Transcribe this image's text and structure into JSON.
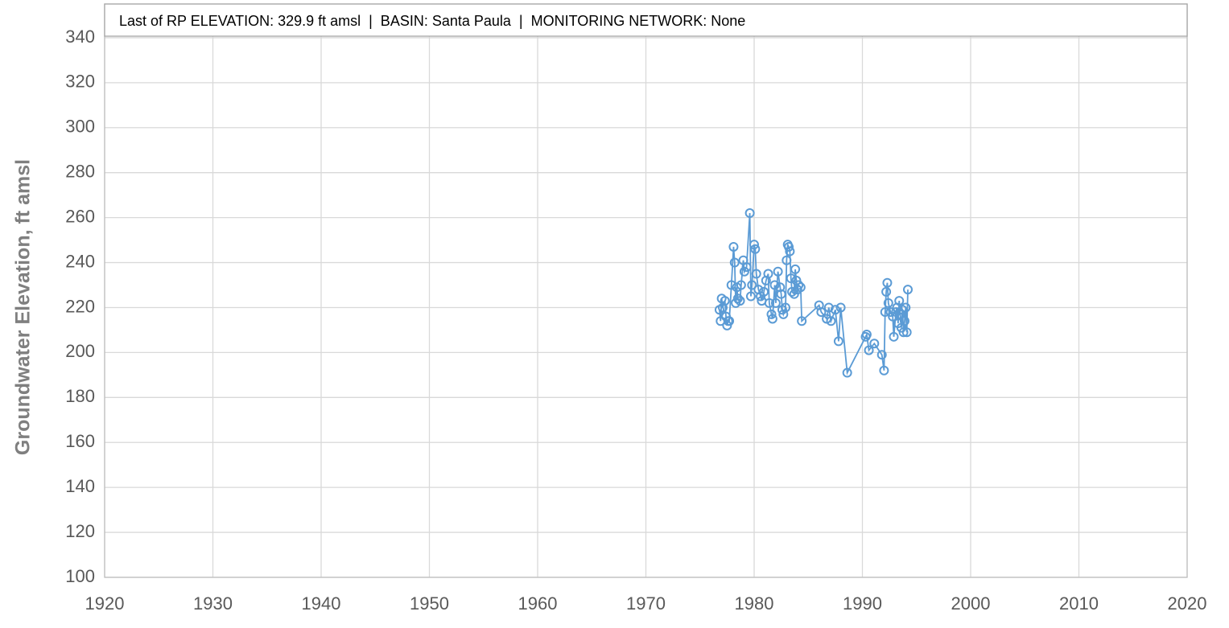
{
  "chart_data": {
    "type": "line",
    "annotation": "Last of RP ELEVATION: 329.9 ft amsl  |  BASIN: Santa Paula  |  MONITORING NETWORK: None",
    "y_label": "Groundwater Elevation, ft amsl",
    "color": "#5b9bd5",
    "grid": true,
    "xlim": [
      1920,
      2020
    ],
    "xticks": [
      1920,
      1930,
      1940,
      1950,
      1960,
      1970,
      1980,
      1990,
      2000,
      2010,
      2020
    ],
    "ylim": [
      100,
      355
    ],
    "yticks": [
      100,
      120,
      140,
      160,
      180,
      200,
      220,
      240,
      260,
      280,
      300,
      320,
      340
    ],
    "x": [
      1976.8,
      1976.9,
      1977.0,
      1977.1,
      1977.3,
      1977.4,
      1977.5,
      1977.6,
      1977.7,
      1977.9,
      1978.1,
      1978.2,
      1978.3,
      1978.4,
      1978.5,
      1978.7,
      1978.8,
      1979.0,
      1979.1,
      1979.3,
      1979.6,
      1979.7,
      1979.8,
      1980.0,
      1980.1,
      1980.2,
      1980.4,
      1980.6,
      1980.7,
      1980.9,
      1981.1,
      1981.3,
      1981.4,
      1981.6,
      1981.7,
      1981.9,
      1982.0,
      1982.2,
      1982.4,
      1982.5,
      1982.6,
      1982.7,
      1982.9,
      1983.0,
      1983.1,
      1983.2,
      1983.3,
      1983.4,
      1983.5,
      1983.7,
      1983.8,
      1983.9,
      1984.0,
      1984.1,
      1984.3,
      1984.4,
      1986.0,
      1986.2,
      1986.7,
      1986.9,
      1987.1,
      1987.5,
      1987.8,
      1988.0,
      1988.6,
      1990.3,
      1990.4,
      1990.6,
      1991.1,
      1991.8,
      1992.0,
      1992.1,
      1992.2,
      1992.3,
      1992.4,
      1992.6,
      1992.8,
      1992.9,
      1993.1,
      1993.2,
      1993.3,
      1993.4,
      1993.5,
      1993.6,
      1993.7,
      1993.8,
      1993.9,
      1994.0,
      1994.1,
      1994.2
    ],
    "values": [
      219,
      214,
      224,
      220,
      223,
      216,
      212,
      214,
      214,
      230,
      247,
      240,
      222,
      229,
      224,
      223,
      230,
      241,
      236,
      238,
      262,
      225,
      230,
      248,
      246,
      235,
      228,
      225,
      223,
      227,
      232,
      235,
      222,
      217,
      215,
      230,
      222,
      236,
      229,
      226,
      219,
      217,
      220,
      241,
      248,
      247,
      245,
      233,
      227,
      226,
      237,
      232,
      228,
      230,
      229,
      214,
      221,
      218,
      215,
      220,
      214,
      219,
      205,
      220,
      191,
      207,
      208,
      201,
      204,
      199,
      192,
      218,
      227,
      231,
      222,
      218,
      216,
      207,
      218,
      220,
      213,
      223,
      217,
      211,
      219,
      209,
      214,
      220,
      209,
      228
    ]
  }
}
